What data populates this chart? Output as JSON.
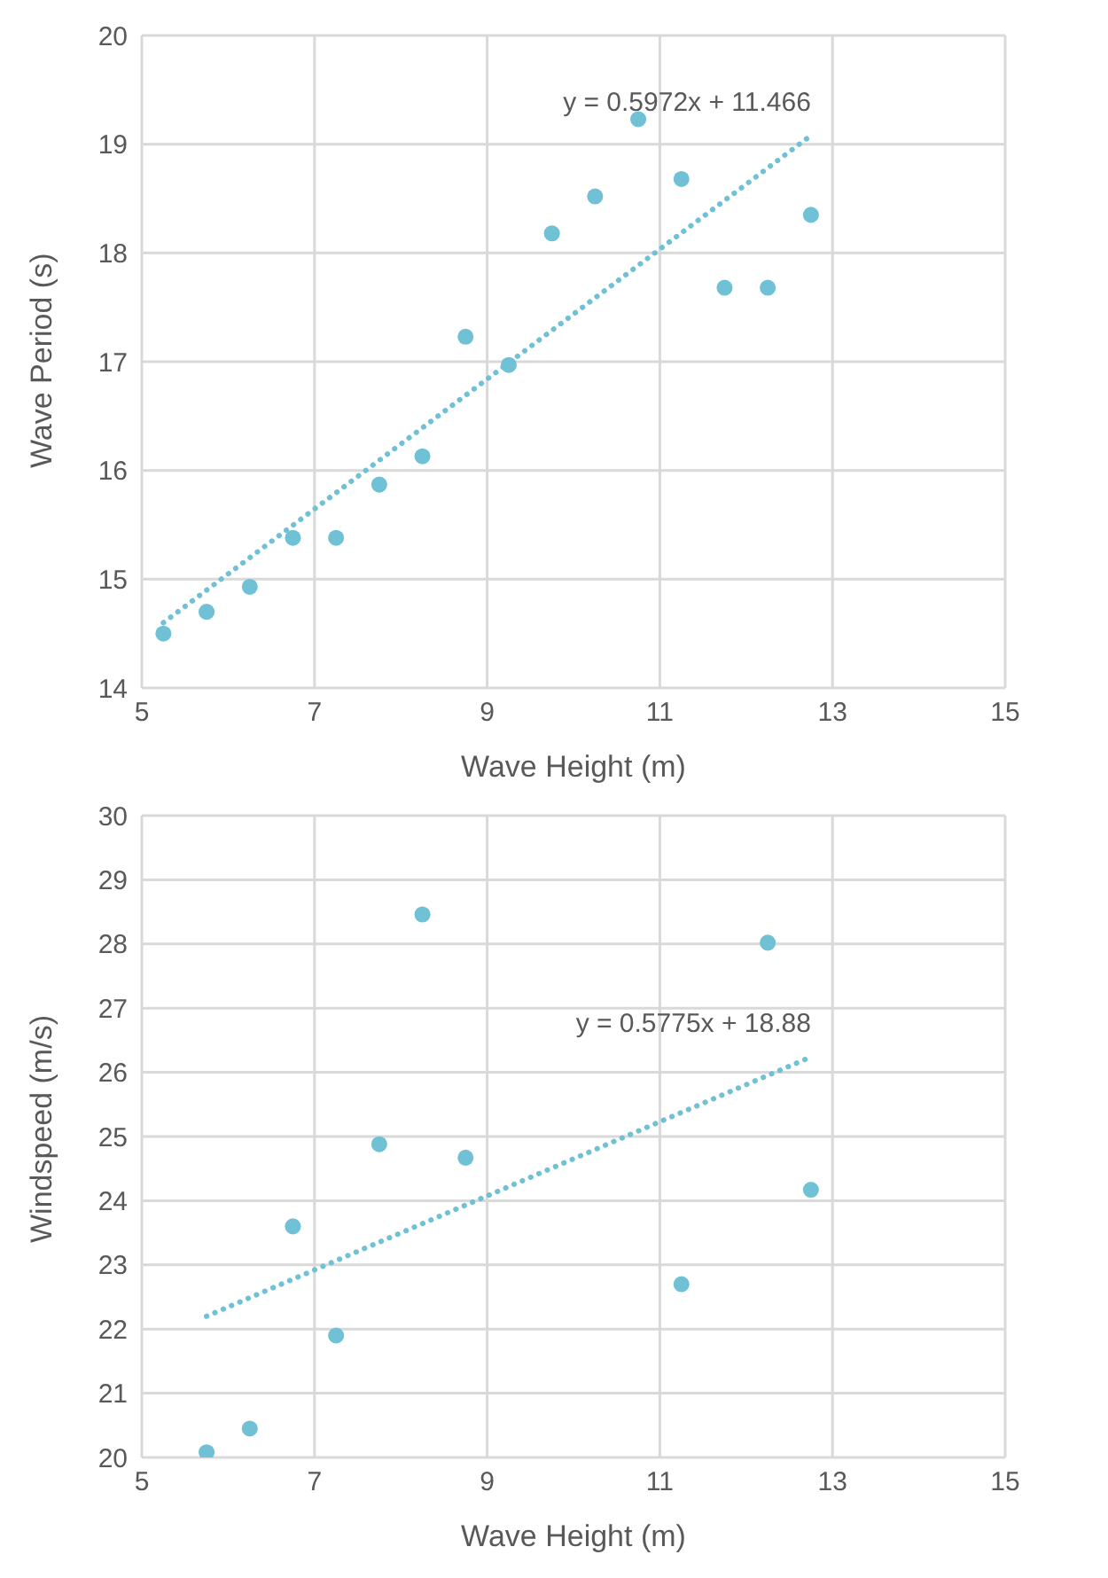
{
  "chart_data": [
    {
      "type": "scatter",
      "xlabel": "Wave Height (m)",
      "ylabel": "Wave Period (s)",
      "xlim": [
        5,
        15
      ],
      "xticks": [
        5,
        7,
        9,
        11,
        13,
        15
      ],
      "ylim": [
        14,
        20
      ],
      "yticks": [
        14,
        15,
        16,
        17,
        18,
        19,
        20
      ],
      "grid": true,
      "legend": false,
      "series": [
        {
          "type": "scatter",
          "marker": "circle",
          "color": "#70c1d5",
          "x": [
            5.25,
            5.75,
            6.25,
            6.75,
            7.25,
            7.75,
            8.25,
            8.75,
            9.25,
            9.75,
            10.25,
            10.75,
            11.25,
            11.75,
            12.25,
            12.75
          ],
          "values": [
            14.5,
            14.7,
            14.93,
            15.38,
            15.38,
            15.87,
            16.13,
            17.23,
            16.97,
            18.18,
            18.52,
            19.23,
            18.68,
            17.68,
            17.68,
            18.35
          ]
        },
        {
          "type": "line",
          "marker": "none",
          "color": "#70c1d5",
          "line_style": "dotted",
          "x": [
            5.25,
            12.75
          ],
          "values": [
            14.6,
            19.08
          ]
        }
      ],
      "annotations": [
        "y = 0.5972x + 11.466"
      ]
    },
    {
      "type": "scatter",
      "xlabel": "Wave Height (m)",
      "ylabel": "Windspeed (m/s)",
      "xlim": [
        5,
        15
      ],
      "xticks": [
        5,
        7,
        9,
        11,
        13,
        15
      ],
      "ylim": [
        20,
        30
      ],
      "yticks": [
        20,
        21,
        22,
        23,
        24,
        25,
        26,
        27,
        28,
        29,
        30
      ],
      "grid": true,
      "legend": false,
      "series": [
        {
          "type": "scatter",
          "marker": "circle",
          "color": "#70c1d5",
          "x": [
            5.75,
            6.25,
            6.75,
            7.25,
            7.75,
            8.25,
            8.75,
            11.25,
            12.25,
            12.75
          ],
          "values": [
            20.08,
            20.45,
            23.6,
            21.9,
            24.88,
            28.46,
            24.67,
            22.7,
            28.02,
            24.17
          ]
        },
        {
          "type": "line",
          "marker": "none",
          "color": "#70c1d5",
          "line_style": "dotted",
          "x": [
            5.75,
            12.75
          ],
          "values": [
            22.2,
            26.24
          ]
        }
      ],
      "annotations": [
        "y = 0.5775x + 18.88"
      ]
    }
  ]
}
